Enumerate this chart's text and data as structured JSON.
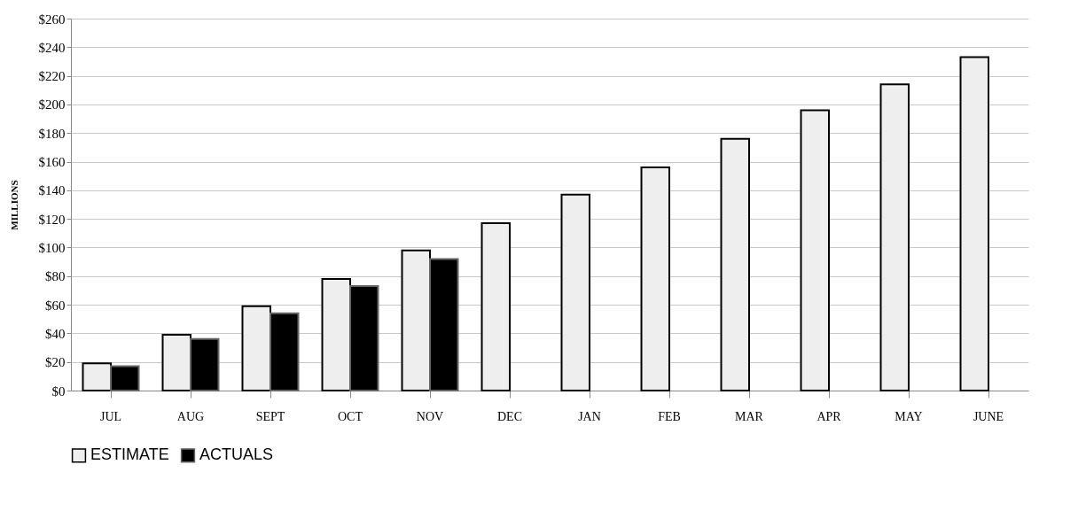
{
  "chart_data": {
    "type": "bar",
    "ylabel": "MILLIONS",
    "categories": [
      "JUL",
      "AUG",
      "SEPT",
      "OCT",
      "NOV",
      "DEC",
      "JAN",
      "FEB",
      "MAR",
      "APR",
      "MAY",
      "JUNE"
    ],
    "series": [
      {
        "name": "ESTIMATE",
        "color": "#eeeeee",
        "values": [
          19,
          39,
          59,
          78,
          98,
          117,
          137,
          156,
          176,
          196,
          214,
          233
        ]
      },
      {
        "name": "ACTUALS",
        "color": "#000000",
        "values": [
          17,
          36,
          54,
          73,
          92,
          null,
          null,
          null,
          null,
          null,
          null,
          null
        ]
      }
    ],
    "ylim": [
      0,
      260
    ],
    "yticks": [
      {
        "value": 0,
        "label": "$0"
      },
      {
        "value": 20,
        "label": "$20"
      },
      {
        "value": 40,
        "label": "$40"
      },
      {
        "value": 60,
        "label": "$60"
      },
      {
        "value": 80,
        "label": "$80"
      },
      {
        "value": 100,
        "label": "$100"
      },
      {
        "value": 120,
        "label": "$120"
      },
      {
        "value": 140,
        "label": "$140"
      },
      {
        "value": 160,
        "label": "$160"
      },
      {
        "value": 180,
        "label": "$180"
      },
      {
        "value": 200,
        "label": "$200"
      },
      {
        "value": 220,
        "label": "$220"
      },
      {
        "value": 240,
        "label": "$240"
      },
      {
        "value": 260,
        "label": "$260"
      }
    ],
    "grid": "y",
    "legend": "bottom"
  }
}
